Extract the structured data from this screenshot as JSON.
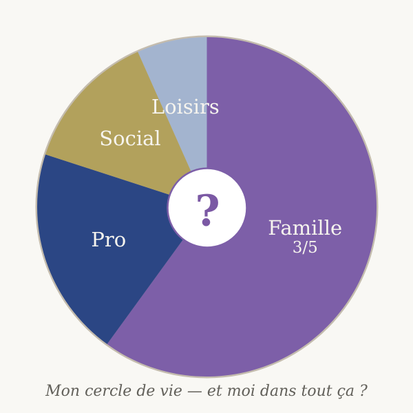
{
  "page": {
    "background": "#f9f8f4"
  },
  "chart_data": {
    "type": "pie",
    "variant": "donut",
    "direction": "clockwise",
    "start_angle_deg": 0,
    "unit_total": 5,
    "segments": [
      {
        "label": "Famille",
        "value": 3,
        "fraction_label": "3/5",
        "angle_deg": 216,
        "color": "#7d5fa8"
      },
      {
        "label": "Pro",
        "value": 1,
        "fraction_label": "",
        "angle_deg": 72,
        "color": "#2b4684"
      },
      {
        "label": "Social",
        "value": 0.67,
        "fraction_label": "",
        "angle_deg": 48,
        "color": "#b2a15c"
      },
      {
        "label": "Loisirs",
        "value": 0.33,
        "fraction_label": "",
        "angle_deg": 24,
        "color": "#a3b4cf"
      }
    ],
    "center_symbol": "?",
    "caption": "Mon cercle de vie — et moi dans tout ça ?",
    "legend_position": "none",
    "grid": false,
    "styles": {
      "ring_color": "#c4bcae",
      "hole_fill": "#ffffff",
      "hole_stroke": "#7d5fa8",
      "center_symbol_color": "#7b59a4",
      "label_color": "#f6f4ee",
      "caption_color": "#62605a"
    }
  }
}
